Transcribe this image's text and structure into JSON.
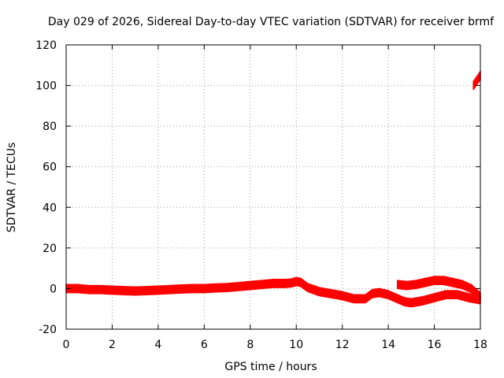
{
  "chart_data": {
    "type": "line",
    "title": "Day 029 of 2026, Sidereal Day-to-day VTEC variation (SDTVAR) for receiver brmf",
    "xlabel": "GPS time / hours",
    "ylabel": "SDTVAR / TECUs",
    "xlim": [
      0,
      18
    ],
    "ylim": [
      -20,
      120
    ],
    "xticks": [
      0,
      2,
      4,
      6,
      8,
      10,
      12,
      14,
      16,
      18
    ],
    "yticks": [
      -20,
      0,
      20,
      40,
      60,
      80,
      100,
      120
    ],
    "grid": true,
    "series_color": "#ff0000",
    "band_half_width": 2.0,
    "series": [
      {
        "name": "sdtvar-main",
        "x": [
          0,
          0.5,
          1.0,
          1.5,
          2.0,
          2.5,
          3.0,
          3.5,
          4.0,
          4.5,
          5.0,
          5.5,
          6.0,
          6.5,
          7.0,
          7.5,
          8.0,
          8.5,
          9.0,
          9.5,
          9.8,
          10.0,
          10.2,
          10.5,
          11.0,
          11.5,
          12.0,
          12.5,
          13.0,
          13.3,
          13.6,
          14.0,
          14.3,
          14.7,
          15.0,
          15.5,
          16.0,
          16.5,
          17.0,
          17.5,
          18.0
        ],
        "y": [
          0,
          0,
          -0.5,
          -0.5,
          -0.8,
          -1.0,
          -1.2,
          -1.0,
          -0.8,
          -0.5,
          -0.2,
          0,
          0,
          0.3,
          0.5,
          1.0,
          1.5,
          2.0,
          2.5,
          2.5,
          2.8,
          3.5,
          3.0,
          0.5,
          -1.5,
          -2.5,
          -3.5,
          -5.0,
          -5.0,
          -2.5,
          -2.0,
          -3.0,
          -4.5,
          -6.5,
          -7.0,
          -6.0,
          -4.5,
          -3.0,
          -3.0,
          -4.5,
          -5.5
        ]
      },
      {
        "name": "sdtvar-upper-arc",
        "x": [
          14.4,
          14.8,
          15.2,
          15.6,
          16.0,
          16.4,
          16.8,
          17.2,
          17.6,
          18.0
        ],
        "y": [
          2.0,
          1.5,
          2.0,
          3.0,
          4.0,
          4.0,
          3.0,
          2.0,
          0,
          -4.0
        ]
      },
      {
        "name": "sdtvar-spike",
        "x": [
          17.7,
          17.85,
          18.0
        ],
        "y": [
          100,
          102.5,
          105
        ]
      }
    ]
  }
}
